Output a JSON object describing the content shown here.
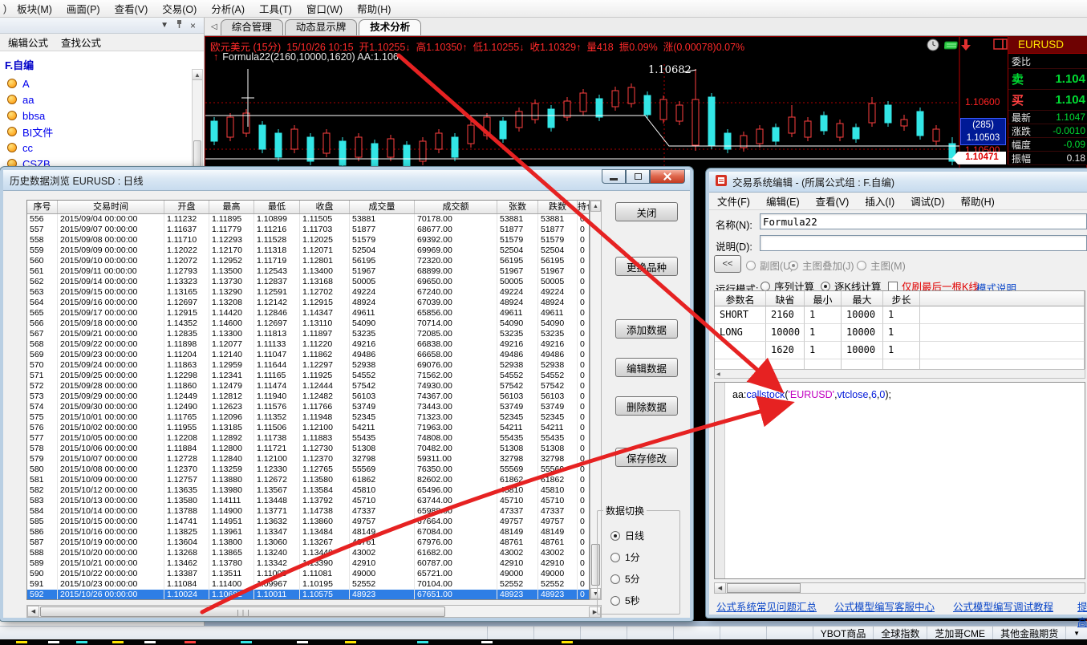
{
  "icons": {
    "collapse": "▼",
    "close_x": "×",
    "up": "▲",
    "down": "▼",
    "left": "◀",
    "right": "▶",
    "back": "◁",
    "dropdown": "▼",
    "price_up": "↑"
  },
  "menu_bar": {
    "fragment": ")",
    "items": [
      "板块(M)",
      "画面(P)",
      "查看(V)",
      "交易(O)",
      "分析(A)",
      "工具(T)",
      "窗口(W)",
      "帮助(H)"
    ]
  },
  "sidebar": {
    "tabs": [
      "编辑公式",
      "查找公式"
    ],
    "group": "F.自编",
    "items": [
      "A",
      "aa",
      "bbsa",
      "BI文件",
      "cc",
      "CSZB"
    ]
  },
  "workspace_tabs": {
    "items": [
      "综合管理",
      "动态显示牌",
      "技术分析"
    ],
    "active": "技术分析"
  },
  "chart": {
    "info": {
      "symbol": "欧元美元 (15分)",
      "datetime": "15/10/26 10:15",
      "open": "开1.10255↓",
      "high": "高1.10350↑",
      "low": "低1.10255↓",
      "close": "收1.10329↑",
      "volume": "量418",
      "swing": "振0.09%",
      "change": "涨(0.00078)0.07%"
    },
    "formula_line": "Formula22(2160,10000,1620) AA:1.106",
    "annotation": "1.10682",
    "axis": {
      "upper": "1.10600",
      "count": "(285)",
      "bid": "1.10503",
      "mid": "1.10500",
      "last": "1.10471"
    },
    "colors": {
      "up": "#ff4040",
      "down": "#33e6e6",
      "grid": "#b00000",
      "line": "#ffffff"
    },
    "candles": [
      [
        11,
        100,
        105,
        130,
        135,
        0
      ],
      [
        31,
        95,
        100,
        125,
        130,
        1
      ],
      [
        51,
        90,
        95,
        120,
        125,
        1
      ],
      [
        71,
        105,
        110,
        140,
        145,
        0
      ],
      [
        91,
        115,
        120,
        150,
        155,
        0
      ],
      [
        111,
        110,
        115,
        140,
        145,
        1
      ],
      [
        131,
        120,
        125,
        155,
        160,
        0
      ],
      [
        151,
        115,
        120,
        145,
        150,
        1
      ],
      [
        171,
        125,
        130,
        160,
        165,
        0
      ],
      [
        191,
        120,
        125,
        150,
        155,
        1
      ],
      [
        211,
        128,
        133,
        163,
        168,
        0
      ],
      [
        231,
        122,
        127,
        150,
        155,
        1
      ],
      [
        251,
        130,
        135,
        165,
        170,
        0
      ],
      [
        271,
        125,
        130,
        155,
        160,
        1
      ],
      [
        291,
        115,
        120,
        140,
        145,
        1
      ],
      [
        311,
        120,
        125,
        150,
        155,
        0
      ],
      [
        331,
        105,
        110,
        133,
        138,
        1
      ],
      [
        351,
        95,
        100,
        123,
        128,
        1
      ],
      [
        371,
        100,
        105,
        127,
        132,
        0
      ],
      [
        391,
        88,
        93,
        113,
        118,
        1
      ],
      [
        411,
        78,
        83,
        103,
        108,
        1
      ],
      [
        431,
        85,
        90,
        113,
        118,
        0
      ],
      [
        451,
        75,
        80,
        100,
        105,
        1
      ],
      [
        471,
        65,
        70,
        93,
        98,
        1
      ],
      [
        491,
        72,
        77,
        100,
        105,
        0
      ],
      [
        511,
        62,
        67,
        87,
        92,
        1
      ],
      [
        531,
        58,
        63,
        83,
        88,
        1
      ],
      [
        551,
        68,
        73,
        97,
        102,
        0
      ],
      [
        571,
        73,
        78,
        103,
        108,
        1
      ],
      [
        591,
        80,
        85,
        105,
        110,
        1
      ],
      [
        611,
        40,
        78,
        135,
        142,
        1
      ],
      [
        631,
        70,
        75,
        135,
        140,
        0
      ],
      [
        651,
        115,
        120,
        140,
        145,
        0
      ],
      [
        671,
        118,
        123,
        138,
        143,
        1
      ],
      [
        691,
        110,
        115,
        133,
        138,
        1
      ],
      [
        711,
        108,
        113,
        130,
        135,
        0
      ],
      [
        731,
        85,
        100,
        120,
        125,
        1
      ],
      [
        751,
        100,
        105,
        125,
        130,
        1
      ],
      [
        771,
        93,
        98,
        117,
        122,
        0
      ],
      [
        791,
        103,
        108,
        125,
        130,
        1
      ],
      [
        811,
        108,
        113,
        127,
        132,
        0
      ],
      [
        831,
        75,
        83,
        107,
        112,
        1
      ],
      [
        851,
        80,
        85,
        107,
        112,
        0
      ],
      [
        871,
        97,
        103,
        111,
        117,
        1
      ],
      [
        891,
        88,
        93,
        123,
        128,
        0
      ],
      [
        911,
        110,
        115,
        130,
        135,
        1
      ],
      [
        931,
        125,
        133,
        155,
        160,
        0
      ]
    ]
  },
  "quote_panel": {
    "title": "EURUSD",
    "rows": [
      {
        "label": "委比",
        "value": "",
        "lc": "#e6e6e6",
        "vc": "#e6e6e6",
        "cls": "first"
      },
      {
        "label": "卖",
        "value": "1.104",
        "lc": "#00dd33",
        "vc": "#00dd33",
        "cls": "big"
      },
      {
        "label": "买",
        "value": "1.104",
        "lc": "#ff4040",
        "vc": "#00dd33",
        "cls": "big"
      },
      {
        "label": "最新",
        "value": "1.1047",
        "lc": "#e6e6e6",
        "vc": "#00dd33",
        "cls": "small"
      },
      {
        "label": "涨跌",
        "value": "-0.0010",
        "lc": "#e6e6e6",
        "vc": "#00dd33",
        "cls": "small"
      },
      {
        "label": "幅度",
        "value": "-0.09",
        "lc": "#e6e6e6",
        "vc": "#00dd33",
        "cls": "small"
      },
      {
        "label": "振幅",
        "value": "0.18",
        "lc": "#e6e6e6",
        "vc": "#e6e6e6",
        "cls": "small"
      }
    ]
  },
  "history_dialog": {
    "title": "历史数据浏览 EURUSD : 日线",
    "columns": [
      "序号",
      "交易时间",
      "开盘",
      "最高",
      "最低",
      "收盘",
      "成交量",
      "成交额",
      "张数",
      "跌数",
      "持仓"
    ],
    "selected_index": 36,
    "buttons": [
      "关闭",
      "更换品种",
      "添加数据",
      "编辑数据",
      "删除数据",
      "保存修改"
    ],
    "data_switch": {
      "label": "数据切换",
      "options": [
        "日线",
        "1分",
        "5分",
        "5秒"
      ],
      "selected": "日线"
    },
    "rows": [
      [
        "556",
        "2015/09/04 00:00:00",
        "1.11232",
        "1.11895",
        "1.10899",
        "1.11505",
        "53881",
        "70178.00",
        "53881",
        "53881",
        "0"
      ],
      [
        "557",
        "2015/09/07 00:00:00",
        "1.11637",
        "1.11779",
        "1.11216",
        "1.11703",
        "51877",
        "68677.00",
        "51877",
        "51877",
        "0"
      ],
      [
        "558",
        "2015/09/08 00:00:00",
        "1.11710",
        "1.12293",
        "1.11528",
        "1.12025",
        "51579",
        "69392.00",
        "51579",
        "51579",
        "0"
      ],
      [
        "559",
        "2015/09/09 00:00:00",
        "1.12022",
        "1.12170",
        "1.11318",
        "1.12071",
        "52504",
        "69969.00",
        "52504",
        "52504",
        "0"
      ],
      [
        "560",
        "2015/09/10 00:00:00",
        "1.12072",
        "1.12952",
        "1.11719",
        "1.12801",
        "56195",
        "72320.00",
        "56195",
        "56195",
        "0"
      ],
      [
        "561",
        "2015/09/11 00:00:00",
        "1.12793",
        "1.13500",
        "1.12543",
        "1.13400",
        "51967",
        "68899.00",
        "51967",
        "51967",
        "0"
      ],
      [
        "562",
        "2015/09/14 00:00:00",
        "1.13323",
        "1.13730",
        "1.12837",
        "1.13168",
        "50005",
        "69650.00",
        "50005",
        "50005",
        "0"
      ],
      [
        "563",
        "2015/09/15 00:00:00",
        "1.13165",
        "1.13290",
        "1.12591",
        "1.12702",
        "49224",
        "67240.00",
        "49224",
        "49224",
        "0"
      ],
      [
        "564",
        "2015/09/16 00:00:00",
        "1.12697",
        "1.13208",
        "1.12142",
        "1.12915",
        "48924",
        "67039.00",
        "48924",
        "48924",
        "0"
      ],
      [
        "565",
        "2015/09/17 00:00:00",
        "1.12915",
        "1.14420",
        "1.12846",
        "1.14347",
        "49611",
        "65856.00",
        "49611",
        "49611",
        "0"
      ],
      [
        "566",
        "2015/09/18 00:00:00",
        "1.14352",
        "1.14600",
        "1.12697",
        "1.13110",
        "54090",
        "70714.00",
        "54090",
        "54090",
        "0"
      ],
      [
        "567",
        "2015/09/21 00:00:00",
        "1.12835",
        "1.13300",
        "1.11813",
        "1.11897",
        "53235",
        "72085.00",
        "53235",
        "53235",
        "0"
      ],
      [
        "568",
        "2015/09/22 00:00:00",
        "1.11898",
        "1.12077",
        "1.11133",
        "1.11220",
        "49216",
        "66838.00",
        "49216",
        "49216",
        "0"
      ],
      [
        "569",
        "2015/09/23 00:00:00",
        "1.11204",
        "1.12140",
        "1.11047",
        "1.11862",
        "49486",
        "66658.00",
        "49486",
        "49486",
        "0"
      ],
      [
        "570",
        "2015/09/24 00:00:00",
        "1.11863",
        "1.12959",
        "1.11644",
        "1.12297",
        "52938",
        "69076.00",
        "52938",
        "52938",
        "0"
      ],
      [
        "571",
        "2015/09/25 00:00:00",
        "1.12298",
        "1.12341",
        "1.11165",
        "1.11925",
        "54552",
        "71562.00",
        "54552",
        "54552",
        "0"
      ],
      [
        "572",
        "2015/09/28 00:00:00",
        "1.11860",
        "1.12479",
        "1.11474",
        "1.12444",
        "57542",
        "74930.00",
        "57542",
        "57542",
        "0"
      ],
      [
        "573",
        "2015/09/29 00:00:00",
        "1.12449",
        "1.12812",
        "1.11940",
        "1.12482",
        "56103",
        "74367.00",
        "56103",
        "56103",
        "0"
      ],
      [
        "574",
        "2015/09/30 00:00:00",
        "1.12490",
        "1.12623",
        "1.11576",
        "1.11766",
        "53749",
        "73443.00",
        "53749",
        "53749",
        "0"
      ],
      [
        "575",
        "2015/10/01 00:00:00",
        "1.11765",
        "1.12096",
        "1.11352",
        "1.11948",
        "52345",
        "71323.00",
        "52345",
        "52345",
        "0"
      ],
      [
        "576",
        "2015/10/02 00:00:00",
        "1.11955",
        "1.13185",
        "1.11506",
        "1.12100",
        "54211",
        "71963.00",
        "54211",
        "54211",
        "0"
      ],
      [
        "577",
        "2015/10/05 00:00:00",
        "1.12208",
        "1.12892",
        "1.11738",
        "1.11883",
        "55435",
        "74808.00",
        "55435",
        "55435",
        "0"
      ],
      [
        "578",
        "2015/10/06 00:00:00",
        "1.11884",
        "1.12800",
        "1.11721",
        "1.12730",
        "51308",
        "70482.00",
        "51308",
        "51308",
        "0"
      ],
      [
        "579",
        "2015/10/07 00:00:00",
        "1.12728",
        "1.12840",
        "1.12100",
        "1.12370",
        "32798",
        "59311.00",
        "32798",
        "32798",
        "0"
      ],
      [
        "580",
        "2015/10/08 00:00:00",
        "1.12370",
        "1.13259",
        "1.12330",
        "1.12765",
        "55569",
        "76350.00",
        "55569",
        "55569",
        "0"
      ],
      [
        "581",
        "2015/10/09 00:00:00",
        "1.12757",
        "1.13880",
        "1.12672",
        "1.13580",
        "61862",
        "82602.00",
        "61862",
        "61862",
        "0"
      ],
      [
        "582",
        "2015/10/12 00:00:00",
        "1.13635",
        "1.13980",
        "1.13567",
        "1.13584",
        "45810",
        "65496.00",
        "45810",
        "45810",
        "0"
      ],
      [
        "583",
        "2015/10/13 00:00:00",
        "1.13580",
        "1.14111",
        "1.13448",
        "1.13792",
        "45710",
        "63744.00",
        "45710",
        "45710",
        "0"
      ],
      [
        "584",
        "2015/10/14 00:00:00",
        "1.13788",
        "1.14900",
        "1.13771",
        "1.14738",
        "47337",
        "65988.00",
        "47337",
        "47337",
        "0"
      ],
      [
        "585",
        "2015/10/15 00:00:00",
        "1.14741",
        "1.14951",
        "1.13632",
        "1.13860",
        "49757",
        "67664.00",
        "49757",
        "49757",
        "0"
      ],
      [
        "586",
        "2015/10/16 00:00:00",
        "1.13825",
        "1.13961",
        "1.13347",
        "1.13484",
        "48149",
        "67084.00",
        "48149",
        "48149",
        "0"
      ],
      [
        "587",
        "2015/10/19 00:00:00",
        "1.13604",
        "1.13800",
        "1.13060",
        "1.13267",
        "48761",
        "67976.00",
        "48761",
        "48761",
        "0"
      ],
      [
        "588",
        "2015/10/20 00:00:00",
        "1.13268",
        "1.13865",
        "1.13240",
        "1.13449",
        "43002",
        "61682.00",
        "43002",
        "43002",
        "0"
      ],
      [
        "589",
        "2015/10/21 00:00:00",
        "1.13462",
        "1.13780",
        "1.13342",
        "1.13390",
        "42910",
        "60787.00",
        "42910",
        "42910",
        "0"
      ],
      [
        "590",
        "2015/10/22 00:00:00",
        "1.13387",
        "1.13511",
        "1.11005",
        "1.11081",
        "49000",
        "65721.00",
        "49000",
        "49000",
        "0"
      ],
      [
        "591",
        "2015/10/23 00:00:00",
        "1.11084",
        "1.11400",
        "1.09967",
        "1.10195",
        "52552",
        "70104.00",
        "52552",
        "52552",
        "0"
      ],
      [
        "592",
        "2015/10/26 00:00:00",
        "1.10024",
        "1.10682",
        "1.10011",
        "1.10575",
        "48923",
        "67651.00",
        "48923",
        "48923",
        "0"
      ]
    ]
  },
  "editor_dialog": {
    "title": "交易系统编辑 - (所属公式组 : F.自编)",
    "menus": [
      "文件(F)",
      "编辑(E)",
      "查看(V)",
      "插入(I)",
      "调试(D)",
      "帮助(H)"
    ],
    "name_label": "名称(N):",
    "name_value": "Formula22",
    "desc_label": "说明(D):",
    "desc_value": "",
    "collapse_button": "<<",
    "position_options": [
      {
        "label": "副图(U)",
        "selected": false
      },
      {
        "label": "主图叠加(J)",
        "selected": true
      },
      {
        "label": "主图(M)",
        "selected": false
      }
    ],
    "run_mode_label": "运行模式:",
    "run_modes": [
      {
        "label": "序列计算",
        "selected": false
      },
      {
        "label": "逐K线计算",
        "selected": true
      }
    ],
    "refresh_checkbox": "仅刷最后一根K线",
    "mode_help_link": "模式说明",
    "param_columns": [
      "参数名",
      "缺省",
      "最小",
      "最大",
      "步长"
    ],
    "params": [
      [
        "SHORT",
        "2160",
        "1",
        "10000",
        "1"
      ],
      [
        "LONG",
        "10000",
        "1",
        "10000",
        "1"
      ],
      [
        "",
        "1620",
        "1",
        "10000",
        "1"
      ]
    ],
    "code_parts": [
      [
        "aa:",
        "#000000"
      ],
      [
        "callstock",
        "#0018d8"
      ],
      [
        "(",
        "#000000"
      ],
      [
        "'EURUSD'",
        "#c000c0"
      ],
      [
        ",",
        "#000000"
      ],
      [
        "vtclose",
        "#0018d8"
      ],
      [
        ",",
        "#000000"
      ],
      [
        "6",
        "#0018d8"
      ],
      [
        ",",
        "#000000"
      ],
      [
        "0",
        "#0018d8"
      ],
      [
        ");",
        "#000000"
      ]
    ],
    "links": [
      "公式系统常见问题汇总",
      "公式模型编写客服中心",
      "公式模型编写调试教程",
      "提高"
    ]
  },
  "taskbar": {
    "items": [
      "YBOT商品",
      "全球指数",
      "芝加哥CME",
      "其他金融期货"
    ]
  }
}
